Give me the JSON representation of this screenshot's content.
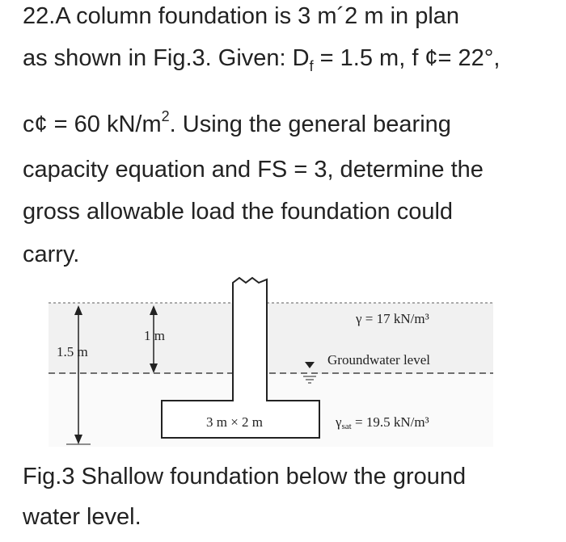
{
  "problem": {
    "lines": [
      [
        "22.A column foundation is 3 m´2 m in plan"
      ],
      [
        "as shown in Fig.3. Given: D",
        "f",
        " = 1.5 m, f ¢= 22°,"
      ],
      [
        "c¢ = 60 kN/m",
        "2",
        ". Using the general bearing"
      ],
      [
        "capacity equation and FS = 3, determine the"
      ],
      [
        "gross allowable load the foundation could"
      ],
      [
        "carry."
      ]
    ]
  },
  "figure": {
    "depth_label": "1.5 m",
    "water_depth_label": "1 m",
    "unit_weight_label": "γ = 17 kN/m³",
    "groundwater_label": "Groundwater level",
    "footing_label": "3 m × 2 m",
    "saturated_label": [
      "γ",
      "sat",
      " = 19.5 kN/m³"
    ]
  },
  "caption": {
    "lines": [
      "Fig.3 Shallow foundation below the ground",
      "water level."
    ]
  }
}
